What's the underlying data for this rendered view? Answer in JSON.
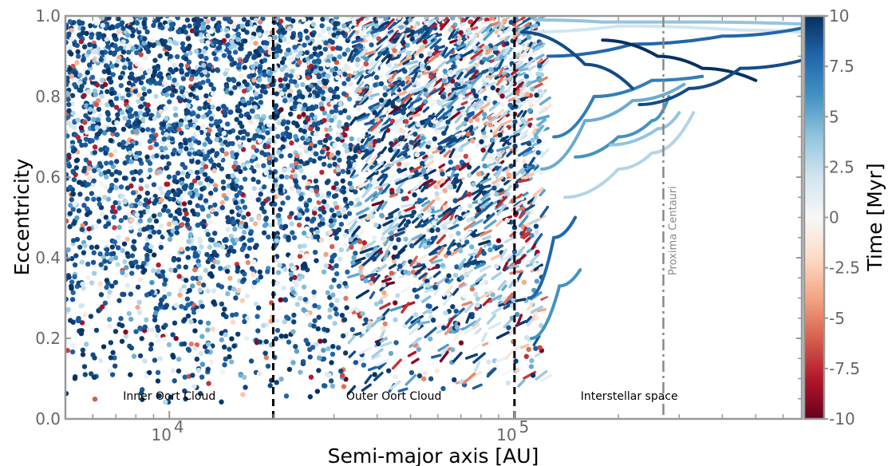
{
  "chart_data": {
    "type": "scatter",
    "xlabel": "Semi-major axis [AU]",
    "ylabel": "Eccentricity",
    "xscale": "log",
    "xlim": [
      5000,
      680000
    ],
    "ylim": [
      0,
      1.0
    ],
    "x_ticks": [
      {
        "value": 10000,
        "base": "10",
        "exp": "4"
      },
      {
        "value": 100000,
        "base": "10",
        "exp": "5"
      }
    ],
    "y_ticks": [
      "0.0",
      "0.2",
      "0.4",
      "0.6",
      "0.8",
      "1.0"
    ],
    "grid": false,
    "colorbar": {
      "label": "Time [Myr]",
      "range": [
        -10,
        10
      ],
      "ticks": [
        "10",
        "7.5",
        "5",
        "2.5",
        "0",
        "-2.5",
        "-5",
        "-7.5",
        "-10"
      ],
      "colormap": "RdBu",
      "colors": [
        "#67001f",
        "#b2182b",
        "#d6604d",
        "#f4a582",
        "#fddbc7",
        "#f7f7f7",
        "#d1e5f0",
        "#92c5de",
        "#4393c3",
        "#2166ac",
        "#053061"
      ]
    },
    "vertical_lines": [
      {
        "x": 20000,
        "style": "dashed",
        "color": "#000000"
      },
      {
        "x": 100000,
        "style": "dashed",
        "color": "#000000"
      },
      {
        "x": 270000,
        "style": "dashdot",
        "color": "#888888",
        "label": "Proxima Centauri"
      }
    ],
    "regions": [
      {
        "label": "Inner Oort Cloud",
        "x_center": 10000
      },
      {
        "label": "Outer Oort Cloud",
        "x_center": 44721
      },
      {
        "label": "Interstellar space",
        "x_center": 215000
      }
    ],
    "long_tracks": [
      {
        "points": [
          [
            115000,
            0.99
          ],
          [
            180000,
            0.985
          ],
          [
            350000,
            0.985
          ],
          [
            680000,
            0.98
          ]
        ],
        "t": 4
      },
      {
        "points": [
          [
            110000,
            0.96
          ],
          [
            200000,
            0.975
          ],
          [
            450000,
            0.965
          ],
          [
            680000,
            0.96
          ]
        ],
        "t": 2
      },
      {
        "points": [
          [
            125000,
            0.9
          ],
          [
            220000,
            0.93
          ],
          [
            400000,
            0.95
          ],
          [
            680000,
            0.97
          ]
        ],
        "t": 8
      },
      {
        "points": [
          [
            130000,
            0.7
          ],
          [
            170000,
            0.8
          ],
          [
            250000,
            0.84
          ],
          [
            350000,
            0.85
          ]
        ],
        "t": 7
      },
      {
        "points": [
          [
            120000,
            0.62
          ],
          [
            160000,
            0.74
          ],
          [
            220000,
            0.79
          ],
          [
            310000,
            0.83
          ]
        ],
        "t": 5
      },
      {
        "points": [
          [
            140000,
            0.55
          ],
          [
            200000,
            0.62
          ],
          [
            250000,
            0.66
          ],
          [
            330000,
            0.76
          ]
        ],
        "t": 3
      },
      {
        "points": [
          [
            150000,
            0.65
          ],
          [
            200000,
            0.7
          ],
          [
            250000,
            0.74
          ],
          [
            280000,
            0.8
          ]
        ],
        "t": 6
      },
      {
        "points": [
          [
            105000,
            0.96
          ],
          [
            160000,
            0.88
          ],
          [
            220000,
            0.82
          ]
        ],
        "t": 9
      },
      {
        "points": [
          [
            180000,
            0.94
          ],
          [
            260000,
            0.9
          ],
          [
            350000,
            0.87
          ],
          [
            500000,
            0.84
          ]
        ],
        "t": 10
      },
      {
        "points": [
          [
            110000,
            0.3
          ],
          [
            130000,
            0.45
          ],
          [
            150000,
            0.5
          ]
        ],
        "t": 8
      },
      {
        "points": [
          [
            112000,
            0.2
          ],
          [
            135000,
            0.33
          ],
          [
            155000,
            0.37
          ]
        ],
        "t": 6
      },
      {
        "points": [
          [
            230000,
            0.78
          ],
          [
            320000,
            0.82
          ],
          [
            450000,
            0.87
          ],
          [
            680000,
            0.89
          ]
        ],
        "t": 9
      },
      {
        "points": [
          [
            190000,
            0.68
          ],
          [
            260000,
            0.72
          ],
          [
            300000,
            0.76
          ]
        ],
        "t": 4
      }
    ]
  }
}
